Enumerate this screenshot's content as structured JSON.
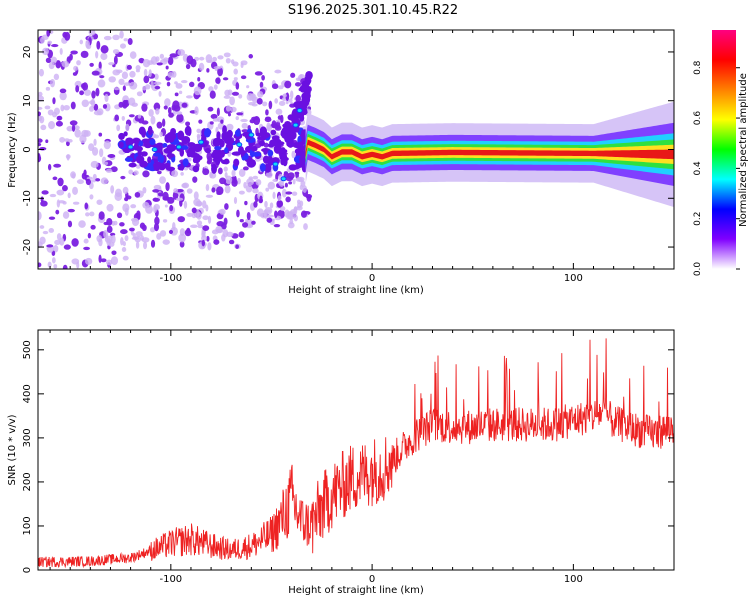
{
  "title": "S196.2025.301.10.45.R22",
  "chart_data": [
    {
      "type": "heatmap",
      "name": "spectrogram",
      "xlabel": "Height of straight line (km)",
      "ylabel": "Frequency (Hz)",
      "xlim": [
        -166,
        150
      ],
      "ylim": [
        -24.5,
        24.5
      ],
      "xticks": [
        -100,
        0,
        100
      ],
      "yticks": [
        20,
        10,
        0,
        -10,
        -20
      ],
      "ridge": [
        {
          "x": -32,
          "y": 1.5
        },
        {
          "x": -28,
          "y": 0.8
        },
        {
          "x": -24,
          "y": 0
        },
        {
          "x": -20,
          "y": -1.5
        },
        {
          "x": -15,
          "y": -0.5
        },
        {
          "x": -10,
          "y": -0.5
        },
        {
          "x": -5,
          "y": -1.5
        },
        {
          "x": 0,
          "y": -1.0
        },
        {
          "x": 5,
          "y": -1.5
        },
        {
          "x": 10,
          "y": -0.8
        },
        {
          "x": 40,
          "y": -0.6
        },
        {
          "x": 110,
          "y": -0.8
        },
        {
          "x": 150,
          "y": -1.0
        }
      ],
      "colorbar": {
        "label": "Normalized spectral amplitude",
        "range": [
          0,
          1
        ],
        "ticks": [
          "0.0",
          "0.2",
          "0.4",
          "0.6",
          "0.8"
        ],
        "colors": [
          "#ffffff",
          "#8000ff",
          "#0000ff",
          "#00ffff",
          "#00ff00",
          "#ffff00",
          "#ff8000",
          "#ff0000",
          "#ff0080"
        ]
      }
    },
    {
      "type": "line",
      "name": "snr",
      "xlabel": "Height of straight line (km)",
      "ylabel": "SNR (10 * v/v)",
      "xlim": [
        -166,
        150
      ],
      "ylim": [
        0,
        545
      ],
      "xticks": [
        -100,
        0,
        100
      ],
      "yticks": [
        0,
        100,
        200,
        300,
        400,
        500
      ],
      "color": "#ee2222",
      "series": [
        {
          "name": "SNR",
          "x": [
            -166,
            -140,
            -120,
            -100,
            -90,
            -80,
            -70,
            -60,
            -50,
            -45,
            -40,
            -35,
            -30,
            -25,
            -20,
            -15,
            -10,
            -5,
            0,
            5,
            10,
            20,
            30,
            40,
            50,
            60,
            70,
            80,
            90,
            100,
            110,
            115,
            120,
            130,
            140,
            150
          ],
          "y": [
            18,
            20,
            28,
            60,
            70,
            55,
            45,
            55,
            80,
            115,
            160,
            110,
            100,
            140,
            170,
            190,
            210,
            215,
            225,
            230,
            250,
            300,
            330,
            325,
            325,
            330,
            330,
            330,
            330,
            340,
            350,
            360,
            335,
            320,
            310,
            325
          ]
        }
      ]
    }
  ]
}
